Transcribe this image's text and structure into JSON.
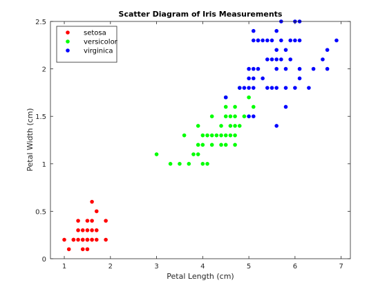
{
  "chart_data": {
    "type": "scatter",
    "title": "Scatter Diagram of Iris Measurements",
    "xlabel": "Petal Length (cm)",
    "ylabel": "Petal Width (cm)",
    "xlim": [
      0.7,
      7.2
    ],
    "ylim": [
      0,
      2.5
    ],
    "xticks": [
      1,
      2,
      3,
      4,
      5,
      6,
      7
    ],
    "yticks": [
      0,
      0.5,
      1,
      1.5,
      2,
      2.5
    ],
    "xtick_labels": [
      "1",
      "2",
      "3",
      "4",
      "5",
      "6",
      "7"
    ],
    "ytick_labels": [
      "0",
      "0.5",
      "1",
      "1.5",
      "2",
      "2.5"
    ],
    "grid": false,
    "legend_position": "top-left",
    "series": [
      {
        "name": "setosa",
        "color": "#ff0000",
        "points": [
          [
            1.0,
            0.2
          ],
          [
            1.1,
            0.1
          ],
          [
            1.2,
            0.2
          ],
          [
            1.3,
            0.2
          ],
          [
            1.3,
            0.3
          ],
          [
            1.3,
            0.4
          ],
          [
            1.4,
            0.1
          ],
          [
            1.4,
            0.2
          ],
          [
            1.4,
            0.3
          ],
          [
            1.5,
            0.1
          ],
          [
            1.5,
            0.2
          ],
          [
            1.5,
            0.3
          ],
          [
            1.5,
            0.4
          ],
          [
            1.6,
            0.2
          ],
          [
            1.6,
            0.4
          ],
          [
            1.6,
            0.6
          ],
          [
            1.7,
            0.2
          ],
          [
            1.7,
            0.3
          ],
          [
            1.7,
            0.5
          ],
          [
            1.9,
            0.2
          ],
          [
            1.9,
            0.4
          ],
          [
            1.6,
            0.3
          ],
          [
            1.2,
            0.2
          ],
          [
            1.4,
            0.2
          ],
          [
            1.5,
            0.2
          ],
          [
            1.6,
            0.2
          ]
        ]
      },
      {
        "name": "versicolor",
        "color": "#00ff00",
        "points": [
          [
            3.0,
            1.1
          ],
          [
            3.3,
            1.0
          ],
          [
            3.5,
            1.0
          ],
          [
            3.6,
            1.3
          ],
          [
            3.7,
            1.0
          ],
          [
            3.8,
            1.1
          ],
          [
            3.9,
            1.1
          ],
          [
            3.9,
            1.2
          ],
          [
            3.9,
            1.4
          ],
          [
            4.0,
            1.0
          ],
          [
            4.0,
            1.2
          ],
          [
            4.0,
            1.3
          ],
          [
            4.1,
            1.0
          ],
          [
            4.1,
            1.3
          ],
          [
            4.2,
            1.2
          ],
          [
            4.2,
            1.3
          ],
          [
            4.2,
            1.5
          ],
          [
            4.3,
            1.3
          ],
          [
            4.4,
            1.2
          ],
          [
            4.4,
            1.3
          ],
          [
            4.4,
            1.4
          ],
          [
            4.5,
            1.3
          ],
          [
            4.5,
            1.5
          ],
          [
            4.5,
            1.6
          ],
          [
            4.5,
            1.7
          ],
          [
            4.6,
            1.3
          ],
          [
            4.6,
            1.4
          ],
          [
            4.6,
            1.5
          ],
          [
            4.7,
            1.2
          ],
          [
            4.7,
            1.4
          ],
          [
            4.7,
            1.5
          ],
          [
            4.7,
            1.6
          ],
          [
            4.8,
            1.4
          ],
          [
            4.8,
            1.8
          ],
          [
            4.9,
            1.5
          ],
          [
            5.0,
            1.7
          ],
          [
            5.1,
            1.6
          ],
          [
            4.5,
            1.2
          ],
          [
            4.7,
            1.3
          ]
        ]
      },
      {
        "name": "virginica",
        "color": "#0000ff",
        "points": [
          [
            4.5,
            1.7
          ],
          [
            4.8,
            1.8
          ],
          [
            4.9,
            1.8
          ],
          [
            5.0,
            1.5
          ],
          [
            5.0,
            1.9
          ],
          [
            5.0,
            2.0
          ],
          [
            5.1,
            1.5
          ],
          [
            5.1,
            1.8
          ],
          [
            5.1,
            1.9
          ],
          [
            5.1,
            2.0
          ],
          [
            5.1,
            2.3
          ],
          [
            5.1,
            2.4
          ],
          [
            5.2,
            2.0
          ],
          [
            5.2,
            2.3
          ],
          [
            5.3,
            1.9
          ],
          [
            5.3,
            2.3
          ],
          [
            5.4,
            2.1
          ],
          [
            5.4,
            2.3
          ],
          [
            5.5,
            1.8
          ],
          [
            5.5,
            2.1
          ],
          [
            5.6,
            1.4
          ],
          [
            5.6,
            1.8
          ],
          [
            5.6,
            2.1
          ],
          [
            5.6,
            2.2
          ],
          [
            5.6,
            2.4
          ],
          [
            5.7,
            2.1
          ],
          [
            5.7,
            2.3
          ],
          [
            5.7,
            2.5
          ],
          [
            5.8,
            1.6
          ],
          [
            5.8,
            1.8
          ],
          [
            5.8,
            2.2
          ],
          [
            5.9,
            2.1
          ],
          [
            5.9,
            2.3
          ],
          [
            6.0,
            1.8
          ],
          [
            6.0,
            2.5
          ],
          [
            6.1,
            1.9
          ],
          [
            6.1,
            2.3
          ],
          [
            6.1,
            2.5
          ],
          [
            6.3,
            1.8
          ],
          [
            6.4,
            2.0
          ],
          [
            6.6,
            2.1
          ],
          [
            6.7,
            2.0
          ],
          [
            6.7,
            2.2
          ],
          [
            6.9,
            2.3
          ],
          [
            5.0,
            1.8
          ],
          [
            5.5,
            2.3
          ],
          [
            5.6,
            2.0
          ],
          [
            5.8,
            2.0
          ],
          [
            6.0,
            2.3
          ],
          [
            6.1,
            2.0
          ],
          [
            5.4,
            1.8
          ],
          [
            5.2,
            2.3
          ]
        ]
      }
    ]
  }
}
